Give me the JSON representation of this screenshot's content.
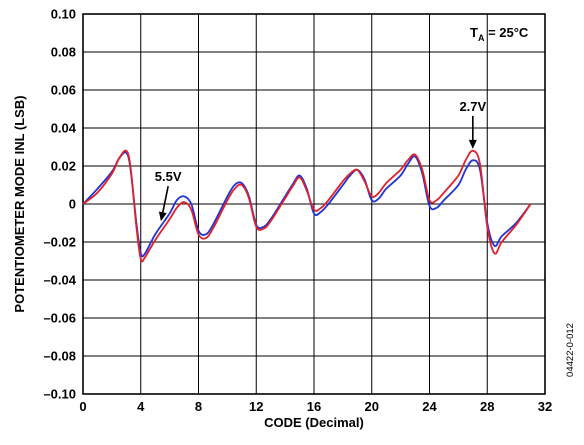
{
  "chart_data": {
    "type": "line",
    "title": "",
    "xlabel": "CODE (Decimal)",
    "ylabel": "POTENTIOMETER MODE INL (LSB)",
    "xlim": [
      0,
      32
    ],
    "ylim": [
      -0.1,
      0.1
    ],
    "x_ticks": [
      0,
      4,
      8,
      12,
      16,
      20,
      24,
      28,
      32
    ],
    "y_ticks": [
      0.1,
      0.08,
      0.06,
      0.04,
      0.02,
      0,
      -0.02,
      -0.04,
      -0.06,
      -0.08,
      -0.1
    ],
    "x_tick_labels": [
      "0",
      "4",
      "8",
      "12",
      "16",
      "20",
      "24",
      "28",
      "32"
    ],
    "y_tick_labels": [
      "0.10",
      "0.08",
      "0.06",
      "0.04",
      "0.02",
      "0",
      "–0.02",
      "–0.04",
      "–0.06",
      "–0.08",
      "–0.10"
    ],
    "grid": true,
    "condition": {
      "base": "T",
      "sub": "A",
      "rest": " = 25°C"
    },
    "figure_id": "04422-0-012",
    "annotations": [
      {
        "label": "5.5V",
        "series": 0,
        "text_at": [
          5.9,
          0.012
        ],
        "arrow_to": [
          5.4,
          -0.009
        ]
      },
      {
        "label": "2.7V",
        "series": 1,
        "text_at": [
          27.0,
          0.049
        ],
        "arrow_to": [
          27.0,
          0.029
        ]
      }
    ],
    "series": [
      {
        "label": "5.5V",
        "color": "#1f33d6",
        "x": [
          0,
          1,
          2,
          2.5,
          3,
          3.3,
          3.7,
          4,
          4.3,
          5,
          6,
          6.5,
          7,
          7.5,
          8,
          8.5,
          9,
          10,
          10.5,
          11,
          11.5,
          12,
          12.5,
          13,
          14,
          14.5,
          15,
          15.5,
          16,
          16.5,
          17,
          18,
          18.5,
          19,
          19.5,
          20,
          20.5,
          21,
          22,
          22.5,
          23,
          23.5,
          24,
          24.5,
          25,
          26,
          26.5,
          27,
          27.5,
          28,
          28.5,
          29,
          30,
          31
        ],
        "y": [
          0.0,
          0.008,
          0.017,
          0.024,
          0.027,
          0.018,
          -0.01,
          -0.026,
          -0.026,
          -0.016,
          -0.005,
          0.002,
          0.004,
          0.0,
          -0.014,
          -0.016,
          -0.011,
          0.004,
          0.01,
          0.011,
          0.004,
          -0.011,
          -0.012,
          -0.008,
          0.004,
          0.01,
          0.015,
          0.008,
          -0.005,
          -0.004,
          0.0,
          0.01,
          0.015,
          0.018,
          0.013,
          0.002,
          0.003,
          0.008,
          0.015,
          0.021,
          0.025,
          0.016,
          -0.001,
          -0.002,
          0.002,
          0.01,
          0.018,
          0.023,
          0.018,
          -0.01,
          -0.022,
          -0.017,
          -0.01,
          0.0
        ]
      },
      {
        "label": "2.7V",
        "color": "#e0202a",
        "x": [
          0,
          1,
          2,
          2.5,
          3,
          3.3,
          3.7,
          4,
          4.3,
          5,
          6,
          6.5,
          7,
          7.5,
          8,
          8.5,
          9,
          10,
          10.5,
          11,
          11.5,
          12,
          12.5,
          13,
          14,
          14.5,
          15,
          15.5,
          16,
          16.5,
          17,
          18,
          18.5,
          19,
          19.5,
          20,
          20.5,
          21,
          22,
          22.5,
          23,
          23.5,
          24,
          24.5,
          25,
          26,
          26.5,
          27,
          27.5,
          28,
          28.5,
          29,
          30,
          31
        ],
        "y": [
          0.0,
          0.006,
          0.016,
          0.024,
          0.028,
          0.019,
          -0.012,
          -0.029,
          -0.028,
          -0.019,
          -0.008,
          -0.002,
          0.001,
          -0.003,
          -0.016,
          -0.018,
          -0.013,
          0.002,
          0.008,
          0.01,
          0.003,
          -0.012,
          -0.013,
          -0.009,
          0.003,
          0.009,
          0.014,
          0.007,
          -0.003,
          -0.002,
          0.002,
          0.012,
          0.016,
          0.018,
          0.012,
          0.004,
          0.006,
          0.011,
          0.018,
          0.023,
          0.026,
          0.018,
          0.002,
          0.002,
          0.006,
          0.015,
          0.023,
          0.028,
          0.021,
          -0.012,
          -0.026,
          -0.02,
          -0.011,
          0.0
        ]
      }
    ]
  }
}
